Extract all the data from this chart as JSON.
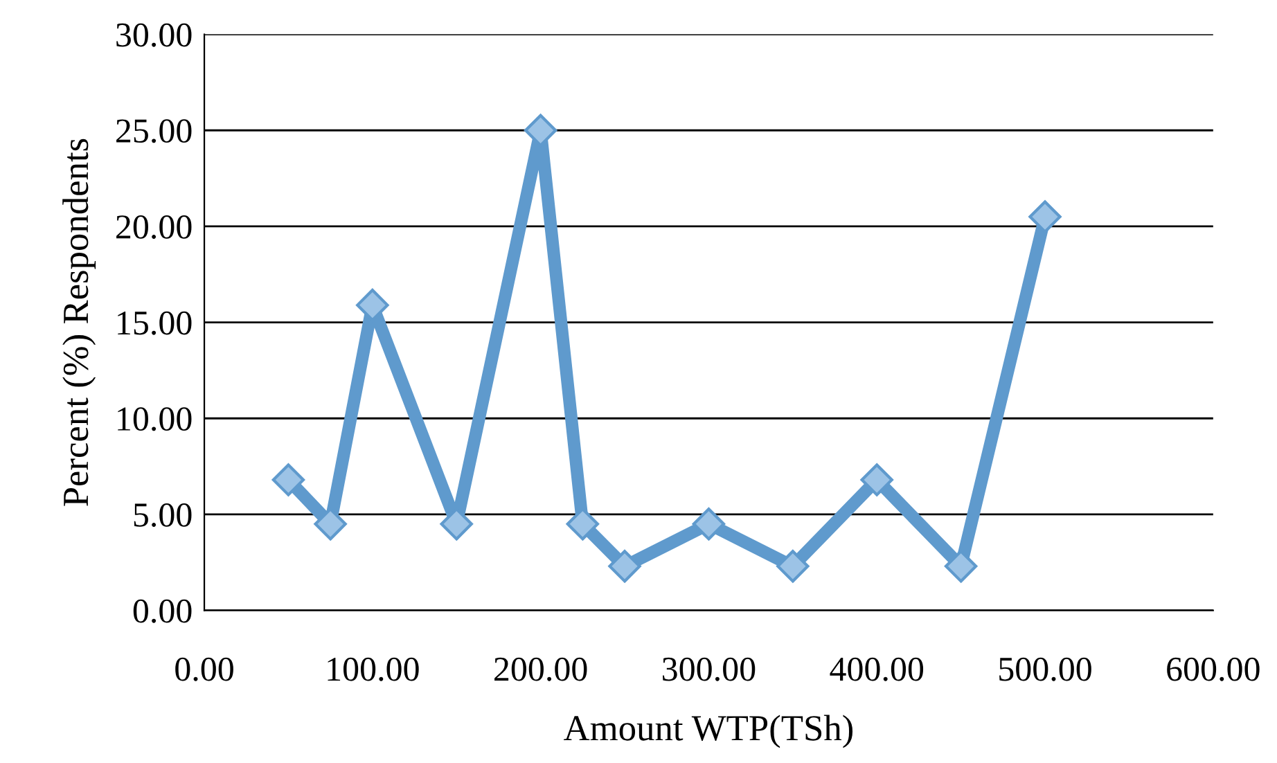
{
  "chart_data": {
    "type": "line",
    "xlabel": "Amount WTP(TSh)",
    "ylabel": "Percent (%) Respondents",
    "x": [
      50,
      75,
      100,
      150,
      200,
      225,
      250,
      300,
      350,
      400,
      450,
      500
    ],
    "series": [
      {
        "color": "#5f9acd",
        "values": [
          6.8,
          4.5,
          15.9,
          4.5,
          25.0,
          4.5,
          2.3,
          4.5,
          2.3,
          6.8,
          2.3,
          20.5
        ]
      }
    ],
    "xlim": [
      0,
      600
    ],
    "ylim": [
      0,
      30
    ],
    "xticks": [
      {
        "value": 0,
        "label": "0.00"
      },
      {
        "value": 100,
        "label": "100.00"
      },
      {
        "value": 200,
        "label": "200.00"
      },
      {
        "value": 300,
        "label": "300.00"
      },
      {
        "value": 400,
        "label": "400.00"
      },
      {
        "value": 500,
        "label": "500.00"
      },
      {
        "value": 600,
        "label": "600.00"
      }
    ],
    "yticks": [
      {
        "value": 0,
        "label": "0.00"
      },
      {
        "value": 5,
        "label": "5.00"
      },
      {
        "value": 10,
        "label": "10.00"
      },
      {
        "value": 15,
        "label": "15.00"
      },
      {
        "value": 20,
        "label": "20.00"
      },
      {
        "value": 25,
        "label": "25.00"
      },
      {
        "value": 30,
        "label": "30.00"
      }
    ],
    "grid": "y",
    "marker": "diamond",
    "line_style": "solid"
  }
}
